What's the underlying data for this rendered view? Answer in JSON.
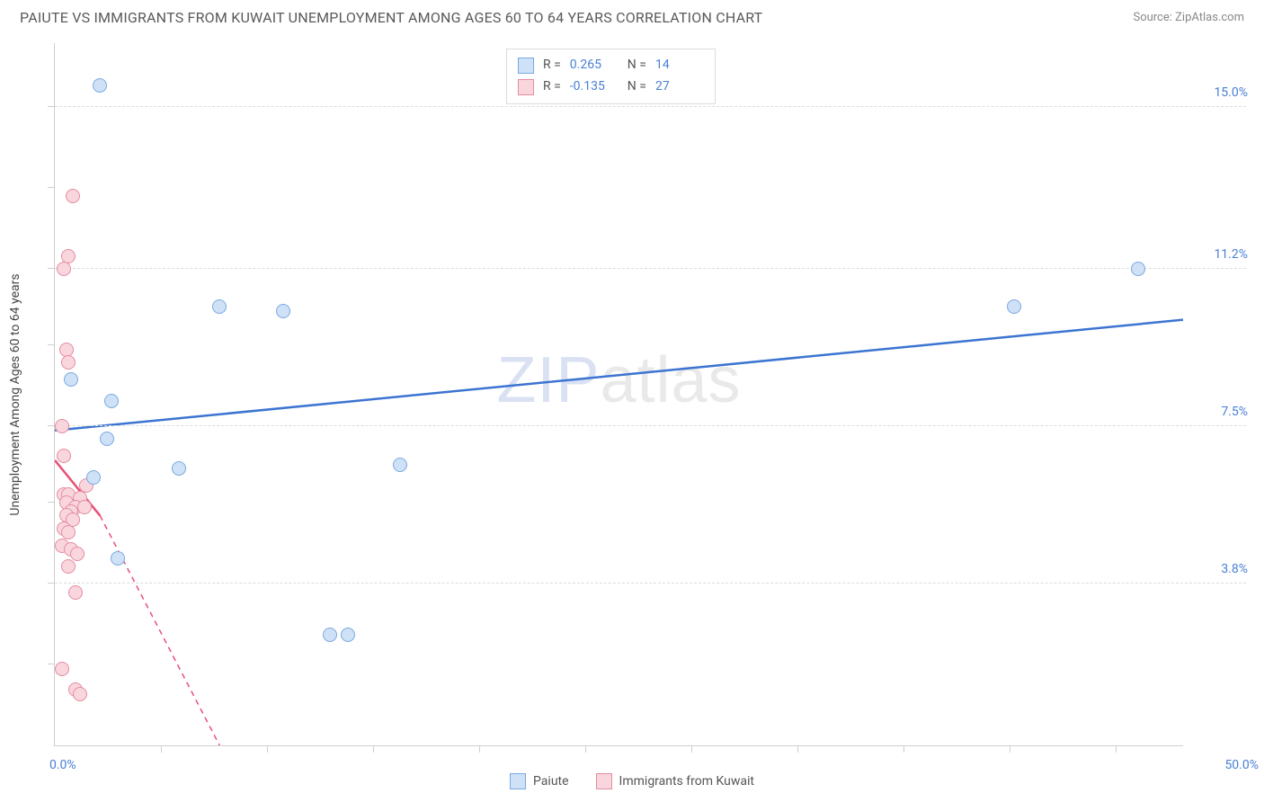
{
  "header": {
    "title": "PAIUTE VS IMMIGRANTS FROM KUWAIT UNEMPLOYMENT AMONG AGES 60 TO 64 YEARS CORRELATION CHART",
    "source": "Source: ZipAtlas.com"
  },
  "watermark": {
    "prefix": "ZIP",
    "suffix": "atlas"
  },
  "chart": {
    "type": "scatter",
    "y_axis_title": "Unemployment Among Ages 60 to 64 years",
    "xlim": [
      0,
      50
    ],
    "ylim": [
      0,
      16.5
    ],
    "x_label_min": "0.0%",
    "x_label_max": "50.0%",
    "x_tick_positions": [
      4.7,
      9.4,
      14.1,
      18.8,
      23.5,
      28.2,
      32.9,
      37.6,
      42.3,
      47.0
    ],
    "y_grid": [
      {
        "value": 3.8,
        "label": "3.8%"
      },
      {
        "value": 7.5,
        "label": "7.5%"
      },
      {
        "value": 11.2,
        "label": "11.2%"
      },
      {
        "value": 15.0,
        "label": "15.0%"
      }
    ],
    "y_tick_positions": [
      1.9,
      3.8,
      5.7,
      7.5,
      9.4,
      11.2,
      13.1,
      15.0
    ],
    "background_color": "#ffffff",
    "grid_color": "#dcdcdc",
    "axis_color": "#cfcfcf",
    "label_color": "#4a80d6",
    "marker_radius": 8,
    "marker_stroke_width": 1.5,
    "series": [
      {
        "name": "Paiute",
        "fill": "#cfe1f7",
        "stroke": "#7aa8e0",
        "line_color": "#3b74d1",
        "R": "0.265",
        "N": "14",
        "trend": {
          "x1": 0,
          "y1": 7.4,
          "x2": 50,
          "y2": 10.0,
          "dashed": false
        },
        "points": [
          {
            "x": 2.0,
            "y": 15.5
          },
          {
            "x": 7.3,
            "y": 10.3
          },
          {
            "x": 10.1,
            "y": 10.2
          },
          {
            "x": 42.5,
            "y": 10.3
          },
          {
            "x": 48.0,
            "y": 11.2
          },
          {
            "x": 0.7,
            "y": 8.6
          },
          {
            "x": 2.5,
            "y": 8.1
          },
          {
            "x": 2.3,
            "y": 7.2
          },
          {
            "x": 5.5,
            "y": 6.5
          },
          {
            "x": 15.3,
            "y": 6.6
          },
          {
            "x": 2.8,
            "y": 4.4
          },
          {
            "x": 12.2,
            "y": 2.6
          },
          {
            "x": 13.0,
            "y": 2.6
          },
          {
            "x": 1.7,
            "y": 6.3
          }
        ]
      },
      {
        "name": "Immigrants from Kuwait",
        "fill": "#f9d6de",
        "stroke": "#e58ca0",
        "line_color": "#e94f73",
        "R": "-0.135",
        "N": "27",
        "trend": {
          "x1": 0,
          "y1": 6.7,
          "x2": 2.0,
          "y2": 5.4,
          "dashed": false
        },
        "trend_ext": {
          "x1": 2.0,
          "y1": 5.4,
          "x2": 7.3,
          "y2": 0,
          "dashed": true
        },
        "points": [
          {
            "x": 0.8,
            "y": 12.9
          },
          {
            "x": 0.6,
            "y": 11.5
          },
          {
            "x": 0.4,
            "y": 11.2
          },
          {
            "x": 0.5,
            "y": 9.3
          },
          {
            "x": 0.6,
            "y": 9.0
          },
          {
            "x": 0.3,
            "y": 7.5
          },
          {
            "x": 0.4,
            "y": 6.8
          },
          {
            "x": 1.4,
            "y": 6.1
          },
          {
            "x": 0.4,
            "y": 5.9
          },
          {
            "x": 0.6,
            "y": 5.9
          },
          {
            "x": 1.1,
            "y": 5.8
          },
          {
            "x": 0.5,
            "y": 5.7
          },
          {
            "x": 0.9,
            "y": 5.6
          },
          {
            "x": 1.3,
            "y": 5.6
          },
          {
            "x": 0.7,
            "y": 5.5
          },
          {
            "x": 0.5,
            "y": 5.4
          },
          {
            "x": 0.8,
            "y": 5.3
          },
          {
            "x": 0.4,
            "y": 5.1
          },
          {
            "x": 0.6,
            "y": 5.0
          },
          {
            "x": 0.3,
            "y": 4.7
          },
          {
            "x": 0.7,
            "y": 4.6
          },
          {
            "x": 1.0,
            "y": 4.5
          },
          {
            "x": 0.6,
            "y": 4.2
          },
          {
            "x": 0.9,
            "y": 3.6
          },
          {
            "x": 0.3,
            "y": 1.8
          },
          {
            "x": 0.9,
            "y": 1.3
          },
          {
            "x": 1.1,
            "y": 1.2
          }
        ]
      }
    ]
  },
  "stats_legend": {
    "R_label": "R  =",
    "N_label": "N  ="
  },
  "bottom_legend": {
    "items": [
      "Paiute",
      "Immigrants from Kuwait"
    ]
  }
}
